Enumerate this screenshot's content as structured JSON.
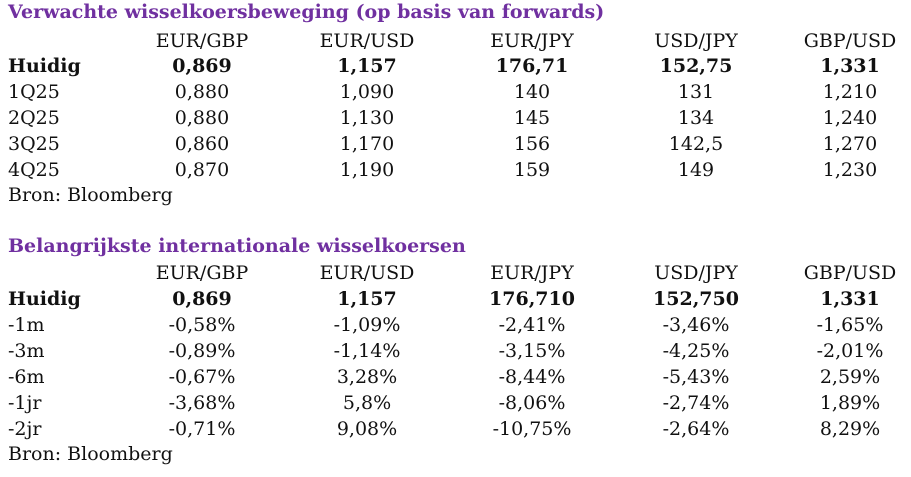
{
  "forecast": {
    "title": "Verwachte wisselkoersbeweging (op basis van forwards)",
    "headers": [
      "EUR/GBP",
      "EUR/USD",
      "EUR/JPY",
      "USD/JPY",
      "GBP/USD"
    ],
    "rows": [
      {
        "label": "Huidig",
        "values": [
          "0,869",
          "1,157",
          "176,71",
          "152,75",
          "1,331"
        ]
      },
      {
        "label": "1Q25",
        "values": [
          "0,880",
          "1,090",
          "140",
          "131",
          "1,210"
        ]
      },
      {
        "label": "2Q25",
        "values": [
          "0,880",
          "1,130",
          "145",
          "134",
          "1,240"
        ]
      },
      {
        "label": "3Q25",
        "values": [
          "0,860",
          "1,170",
          "156",
          "142,5",
          "1,270"
        ]
      },
      {
        "label": "4Q25",
        "values": [
          "0,870",
          "1,190",
          "159",
          "149",
          "1,230"
        ]
      }
    ],
    "source": "Bron: Bloomberg"
  },
  "rates": {
    "title": "Belangrijkste internationale wisselkoersen",
    "headers": [
      "EUR/GBP",
      "EUR/USD",
      "EUR/JPY",
      "USD/JPY",
      "GBP/USD"
    ],
    "rows": [
      {
        "label": "Huidig",
        "values": [
          "0,869",
          "1,157",
          "176,710",
          "152,750",
          "1,331"
        ]
      },
      {
        "label": "-1m",
        "values": [
          "-0,58%",
          "-1,09%",
          "-2,41%",
          "-3,46%",
          "-1,65%"
        ]
      },
      {
        "label": "-3m",
        "values": [
          "-0,89%",
          "-1,14%",
          "-3,15%",
          "-4,25%",
          "-2,01%"
        ]
      },
      {
        "label": "-6m",
        "values": [
          "-0,67%",
          "3,28%",
          "-8,44%",
          "-5,43%",
          "2,59%"
        ]
      },
      {
        "label": "-1jr",
        "values": [
          "-3,68%",
          "5,8%",
          "-8,06%",
          "-2,74%",
          "1,89%"
        ]
      },
      {
        "label": "-2jr",
        "values": [
          "-0,71%",
          "9,08%",
          "-10,75%",
          "-2,64%",
          "8,29%"
        ]
      }
    ],
    "source": "Bron: Bloomberg"
  },
  "colors": {
    "title": "#7030a0",
    "text": "#111111"
  }
}
